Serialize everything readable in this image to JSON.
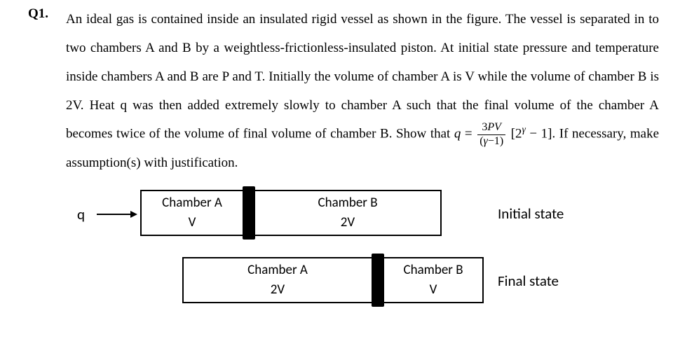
{
  "question": {
    "label": "Q1.",
    "line1": "An ideal gas is contained inside an insulated rigid vessel as shown in the figure. The vessel is",
    "line2": "separated in to two chambers A and B by a weightless-frictionless-insulated piston. At initial state",
    "line3": "pressure and temperature inside chambers A and B are P and T. Initially the volume of chamber A",
    "line4": "is V while the volume of chamber B is 2V. Heat q was then added extremely slowly to chamber A",
    "line5": "such that the final volume of the chamber A becomes twice of the volume of final volume of",
    "line6_pre": "chamber B. Show that ",
    "line6_eq_lhs": "q",
    "line6_eq_eq": " = ",
    "frac_num_a": "3",
    "frac_num_b": "PV",
    "frac_den_a": "(",
    "frac_den_b": "γ",
    "frac_den_c": "−1)",
    "line6_bracket_open": " [2",
    "line6_exp": "γ",
    "line6_bracket_close": " − 1]. ",
    "line6_post": "If necessary, make assumption(s) with justification."
  },
  "diagram": {
    "heat_symbol": "q",
    "initial": {
      "a_label": "Chamber A",
      "a_vol": "V",
      "a_width": 144,
      "b_label": "Chamber B",
      "b_vol": "2V",
      "state_label": "Initial state"
    },
    "final": {
      "a_label": "Chamber A",
      "a_vol": "2V",
      "a_width": 268,
      "b_label": "Chamber B",
      "b_vol": "V",
      "state_label": "Final state"
    }
  }
}
